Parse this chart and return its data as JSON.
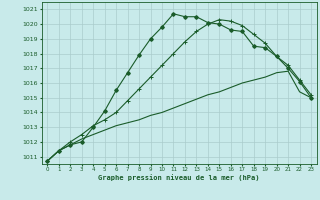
{
  "title": "Graphe pression niveau de la mer (hPa)",
  "bg_color": "#c8eaea",
  "grid_color": "#aacccc",
  "line_color": "#1a5c2a",
  "xlim": [
    -0.5,
    23.5
  ],
  "ylim": [
    1010.5,
    1021.5
  ],
  "yticks": [
    1011,
    1012,
    1013,
    1014,
    1015,
    1016,
    1017,
    1018,
    1019,
    1020,
    1021
  ],
  "xticks": [
    0,
    1,
    2,
    3,
    4,
    5,
    6,
    7,
    8,
    9,
    10,
    11,
    12,
    13,
    14,
    15,
    16,
    17,
    18,
    19,
    20,
    21,
    22,
    23
  ],
  "line1_x": [
    0,
    1,
    2,
    3,
    4,
    5,
    6,
    7,
    8,
    9,
    10,
    11,
    12,
    13,
    14,
    15,
    16,
    17,
    18,
    19,
    20,
    21,
    22,
    23
  ],
  "line1_y": [
    1010.7,
    1011.4,
    1011.8,
    1012.0,
    1013.0,
    1014.1,
    1015.5,
    1016.7,
    1017.9,
    1019.0,
    1019.8,
    1020.7,
    1020.5,
    1020.5,
    1020.1,
    1020.0,
    1019.6,
    1019.5,
    1018.5,
    1018.4,
    1017.8,
    1017.0,
    1016.1,
    1015.0
  ],
  "line2_x": [
    0,
    1,
    2,
    3,
    4,
    5,
    6,
    7,
    8,
    9,
    10,
    11,
    12,
    13,
    14,
    15,
    16,
    17,
    18,
    19,
    20,
    21,
    22,
    23
  ],
  "line2_y": [
    1010.7,
    1011.4,
    1011.8,
    1012.2,
    1012.5,
    1012.8,
    1013.1,
    1013.3,
    1013.5,
    1013.8,
    1014.0,
    1014.3,
    1014.6,
    1014.9,
    1015.2,
    1015.4,
    1015.7,
    1016.0,
    1016.2,
    1016.4,
    1016.7,
    1016.8,
    1015.4,
    1015.0
  ],
  "line3_x": [
    0,
    1,
    2,
    3,
    4,
    5,
    6,
    7,
    8,
    9,
    10,
    11,
    12,
    13,
    14,
    15,
    16,
    17,
    18,
    19,
    20,
    21,
    22,
    23
  ],
  "line3_y": [
    1010.7,
    1011.4,
    1012.0,
    1012.5,
    1013.1,
    1013.5,
    1014.0,
    1014.8,
    1015.6,
    1016.4,
    1017.2,
    1018.0,
    1018.8,
    1019.5,
    1020.0,
    1020.3,
    1020.2,
    1019.9,
    1019.3,
    1018.7,
    1017.8,
    1017.2,
    1016.2,
    1015.2
  ]
}
